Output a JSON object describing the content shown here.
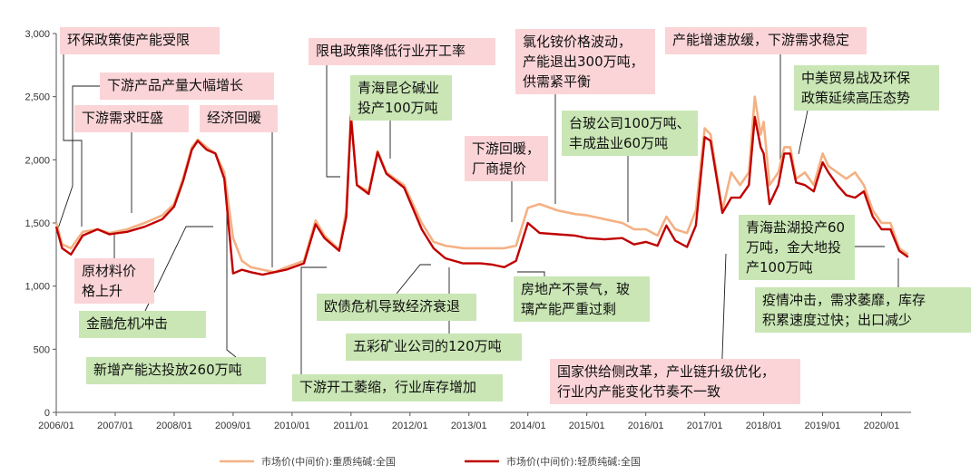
{
  "chart_data": {
    "type": "line",
    "title": "",
    "xlabel": "",
    "ylabel": "",
    "ylim": [
      0,
      3000
    ],
    "xlim": [
      "2006/01",
      "2020/06"
    ],
    "y_ticks": [
      "0",
      "500",
      "1,000",
      "1,500",
      "2,000",
      "2,500",
      "3,000"
    ],
    "x_ticks": [
      "2006/01",
      "2007/01",
      "2008/01",
      "2009/01",
      "2010/01",
      "2011/01",
      "2012/01",
      "2013/01",
      "2014/01",
      "2015/01",
      "2016/01",
      "2017/01",
      "2018/01",
      "2019/01",
      "2020/01"
    ],
    "grid": false,
    "legend_position": "bottom",
    "colors": {
      "heavy": "#f4b183",
      "light": "#c00000",
      "pink_box": "#fbd4d7",
      "green_box": "#c9e6b4"
    },
    "series": [
      {
        "name": "市场价(中间价):重质纯碱:全国",
        "color": "#f4b183",
        "points": [
          [
            2006.0,
            1500
          ],
          [
            2006.1,
            1330
          ],
          [
            2006.25,
            1300
          ],
          [
            2006.45,
            1430
          ],
          [
            2006.7,
            1450
          ],
          [
            2006.9,
            1420
          ],
          [
            2007.2,
            1450
          ],
          [
            2007.5,
            1500
          ],
          [
            2007.8,
            1560
          ],
          [
            2008.0,
            1650
          ],
          [
            2008.15,
            1850
          ],
          [
            2008.3,
            2100
          ],
          [
            2008.4,
            2160
          ],
          [
            2008.55,
            2100
          ],
          [
            2008.7,
            2050
          ],
          [
            2008.85,
            1900
          ],
          [
            2009.0,
            1380
          ],
          [
            2009.15,
            1200
          ],
          [
            2009.3,
            1150
          ],
          [
            2009.5,
            1130
          ],
          [
            2009.7,
            1110
          ],
          [
            2009.9,
            1150
          ],
          [
            2010.2,
            1200
          ],
          [
            2010.4,
            1520
          ],
          [
            2010.55,
            1400
          ],
          [
            2010.8,
            1290
          ],
          [
            2010.92,
            1600
          ],
          [
            2011.0,
            2360
          ],
          [
            2011.1,
            1800
          ],
          [
            2011.3,
            1750
          ],
          [
            2011.45,
            2070
          ],
          [
            2011.6,
            1900
          ],
          [
            2011.9,
            1800
          ],
          [
            2012.2,
            1500
          ],
          [
            2012.4,
            1350
          ],
          [
            2012.6,
            1320
          ],
          [
            2012.9,
            1300
          ],
          [
            2013.2,
            1300
          ],
          [
            2013.4,
            1300
          ],
          [
            2013.6,
            1300
          ],
          [
            2013.8,
            1320
          ],
          [
            2014.0,
            1620
          ],
          [
            2014.2,
            1650
          ],
          [
            2014.5,
            1600
          ],
          [
            2014.8,
            1570
          ],
          [
            2015.0,
            1560
          ],
          [
            2015.3,
            1530
          ],
          [
            2015.6,
            1500
          ],
          [
            2015.8,
            1450
          ],
          [
            2016.0,
            1450
          ],
          [
            2016.2,
            1400
          ],
          [
            2016.35,
            1550
          ],
          [
            2016.5,
            1450
          ],
          [
            2016.7,
            1420
          ],
          [
            2016.85,
            1600
          ],
          [
            2017.0,
            2250
          ],
          [
            2017.1,
            2200
          ],
          [
            2017.3,
            1600
          ],
          [
            2017.45,
            1900
          ],
          [
            2017.6,
            1800
          ],
          [
            2017.75,
            1900
          ],
          [
            2017.85,
            2500
          ],
          [
            2017.95,
            2200
          ],
          [
            2018.0,
            2300
          ],
          [
            2018.1,
            1800
          ],
          [
            2018.25,
            1900
          ],
          [
            2018.35,
            2100
          ],
          [
            2018.45,
            2100
          ],
          [
            2018.55,
            1850
          ],
          [
            2018.7,
            1900
          ],
          [
            2018.85,
            1800
          ],
          [
            2019.0,
            2050
          ],
          [
            2019.1,
            1950
          ],
          [
            2019.25,
            1900
          ],
          [
            2019.4,
            1850
          ],
          [
            2019.55,
            1900
          ],
          [
            2019.7,
            1800
          ],
          [
            2019.85,
            1600
          ],
          [
            2020.0,
            1500
          ],
          [
            2020.15,
            1500
          ],
          [
            2020.3,
            1300
          ],
          [
            2020.45,
            1250
          ]
        ]
      },
      {
        "name": "市场价(中间价):轻质纯碱:全国",
        "color": "#c00000",
        "points": [
          [
            2006.0,
            1470
          ],
          [
            2006.1,
            1300
          ],
          [
            2006.25,
            1250
          ],
          [
            2006.45,
            1400
          ],
          [
            2006.7,
            1450
          ],
          [
            2006.9,
            1410
          ],
          [
            2007.2,
            1430
          ],
          [
            2007.5,
            1470
          ],
          [
            2007.8,
            1530
          ],
          [
            2008.0,
            1630
          ],
          [
            2008.15,
            1830
          ],
          [
            2008.3,
            2080
          ],
          [
            2008.4,
            2150
          ],
          [
            2008.55,
            2080
          ],
          [
            2008.7,
            2050
          ],
          [
            2008.85,
            1850
          ],
          [
            2009.0,
            1100
          ],
          [
            2009.15,
            1130
          ],
          [
            2009.3,
            1110
          ],
          [
            2009.5,
            1090
          ],
          [
            2009.7,
            1110
          ],
          [
            2009.9,
            1130
          ],
          [
            2010.2,
            1180
          ],
          [
            2010.4,
            1490
          ],
          [
            2010.55,
            1380
          ],
          [
            2010.8,
            1280
          ],
          [
            2010.92,
            1550
          ],
          [
            2011.0,
            2340
          ],
          [
            2011.1,
            1800
          ],
          [
            2011.3,
            1730
          ],
          [
            2011.45,
            2060
          ],
          [
            2011.6,
            1890
          ],
          [
            2011.9,
            1780
          ],
          [
            2012.2,
            1450
          ],
          [
            2012.4,
            1300
          ],
          [
            2012.6,
            1220
          ],
          [
            2012.9,
            1180
          ],
          [
            2013.2,
            1180
          ],
          [
            2013.4,
            1170
          ],
          [
            2013.6,
            1150
          ],
          [
            2013.8,
            1200
          ],
          [
            2014.0,
            1500
          ],
          [
            2014.2,
            1420
          ],
          [
            2014.5,
            1410
          ],
          [
            2014.8,
            1400
          ],
          [
            2015.0,
            1380
          ],
          [
            2015.3,
            1370
          ],
          [
            2015.6,
            1380
          ],
          [
            2015.8,
            1330
          ],
          [
            2016.0,
            1350
          ],
          [
            2016.2,
            1320
          ],
          [
            2016.35,
            1480
          ],
          [
            2016.5,
            1360
          ],
          [
            2016.7,
            1310
          ],
          [
            2016.85,
            1480
          ],
          [
            2017.0,
            2180
          ],
          [
            2017.1,
            2150
          ],
          [
            2017.3,
            1580
          ],
          [
            2017.45,
            1700
          ],
          [
            2017.6,
            1700
          ],
          [
            2017.75,
            1800
          ],
          [
            2017.85,
            2340
          ],
          [
            2017.95,
            2100
          ],
          [
            2018.0,
            2050
          ],
          [
            2018.1,
            1650
          ],
          [
            2018.25,
            1800
          ],
          [
            2018.35,
            2050
          ],
          [
            2018.45,
            2050
          ],
          [
            2018.55,
            1820
          ],
          [
            2018.7,
            1800
          ],
          [
            2018.85,
            1750
          ],
          [
            2019.0,
            1980
          ],
          [
            2019.1,
            1900
          ],
          [
            2019.25,
            1800
          ],
          [
            2019.4,
            1720
          ],
          [
            2019.55,
            1700
          ],
          [
            2019.7,
            1750
          ],
          [
            2019.85,
            1550
          ],
          [
            2020.0,
            1450
          ],
          [
            2020.15,
            1450
          ],
          [
            2020.3,
            1280
          ],
          [
            2020.45,
            1230
          ]
        ]
      }
    ],
    "annotations": [
      {
        "text": "环保政策使产能受限",
        "style": "pink"
      },
      {
        "text": "下游产品产量大幅增长",
        "style": "pink"
      },
      {
        "text": "下游需求旺盛",
        "style": "pink"
      },
      {
        "text": "经济回暖",
        "style": "pink"
      },
      {
        "text": "原材料价\n格上升",
        "style": "pink"
      },
      {
        "text": "金融危机冲击",
        "style": "green"
      },
      {
        "text": "新增产能达投放260万吨",
        "style": "green"
      },
      {
        "text": "限电政策降低行业开工率",
        "style": "pink"
      },
      {
        "text": "青海昆仑碱业\n投产100万吨",
        "style": "green"
      },
      {
        "text": "欧债危机导致经济衰退",
        "style": "green"
      },
      {
        "text": "五彩矿业公司的120万吨",
        "style": "green"
      },
      {
        "text": "下游开工萎缩，行业库存增加",
        "style": "green"
      },
      {
        "text": "氯化铵价格波动，\n产能退出300万吨，\n供需紧平衡",
        "style": "pink"
      },
      {
        "text": "下游回暖，\n厂商提价",
        "style": "pink"
      },
      {
        "text": "台玻公司100万吨、\n丰成盐业60万吨",
        "style": "green"
      },
      {
        "text": "房地产不景气，玻\n璃产能严重过剩",
        "style": "green"
      },
      {
        "text": "国家供给侧改革，产业链升级优化，\n行业内产能变化节奏不一致",
        "style": "pink"
      },
      {
        "text": "产能增速放缓，下游需求稳定",
        "style": "pink"
      },
      {
        "text": "中美贸易战及环保\n政策延续高压态势",
        "style": "green"
      },
      {
        "text": "青海盐湖投产60\n万吨，金大地投\n产100万吨",
        "style": "green"
      },
      {
        "text": "疫情冲击，需求萎靡，库存\n积累速度过快；出口减少",
        "style": "green"
      }
    ]
  }
}
